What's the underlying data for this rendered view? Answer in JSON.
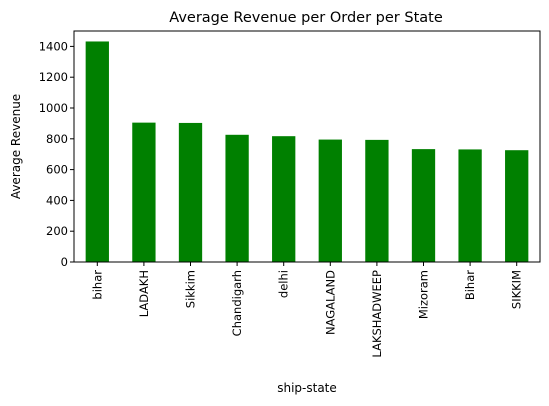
{
  "chart_data": {
    "type": "bar",
    "title": "Average Revenue per Order per State",
    "xlabel": "ship-state",
    "ylabel": "Average Revenue",
    "categories": [
      "bihar",
      "LADAKH",
      "Sikkim",
      "Chandigarh",
      "delhi",
      "NAGALAND",
      "LAKSHADWEEP",
      "Mizoram",
      "Bihar",
      "SIKKIM"
    ],
    "values": [
      1432,
      905,
      903,
      826,
      817,
      795,
      793,
      733,
      731,
      726
    ],
    "ylim": [
      0,
      1500
    ],
    "yticks": [
      0,
      200,
      400,
      600,
      800,
      1000,
      1200,
      1400
    ],
    "grid": false,
    "legend": "none",
    "colors": {
      "bar": "#008000",
      "axis": "#000000"
    }
  }
}
